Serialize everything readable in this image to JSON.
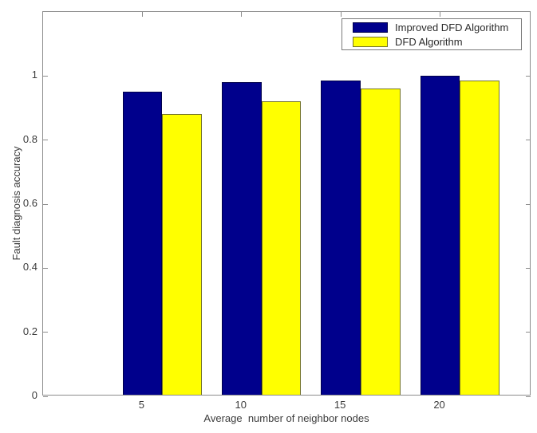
{
  "figure": {
    "background": "#ffffff",
    "axis_color": "#8c8c8c",
    "text_color": "#3c3c3c"
  },
  "chart_data": {
    "type": "bar",
    "title": "",
    "xlabel": "Average  number of neighbor nodes",
    "ylabel": "Fault diagnosis accuracy",
    "categories": [
      5,
      10,
      15,
      20
    ],
    "x_tick_labels": [
      "5",
      "10",
      "15",
      "20"
    ],
    "y_ticks": [
      0,
      0.2,
      0.4,
      0.6,
      0.8,
      1
    ],
    "y_tick_labels": [
      "0",
      "0.2",
      "0.4",
      "0.6",
      "0.8",
      "1"
    ],
    "xlim": [
      0,
      24.6
    ],
    "ylim": [
      0,
      1.2
    ],
    "grid": false,
    "legend_position": "top-right",
    "series": [
      {
        "name": "Improved DFD Algorithm",
        "color": "#00008C",
        "edge_color": "#00004a",
        "values": [
          0.95,
          0.98,
          0.985,
          1.0
        ]
      },
      {
        "name": "DFD Algorithm",
        "color": "#FFFF00",
        "edge_color": "#74742c",
        "values": [
          0.88,
          0.92,
          0.96,
          0.985
        ]
      }
    ]
  }
}
